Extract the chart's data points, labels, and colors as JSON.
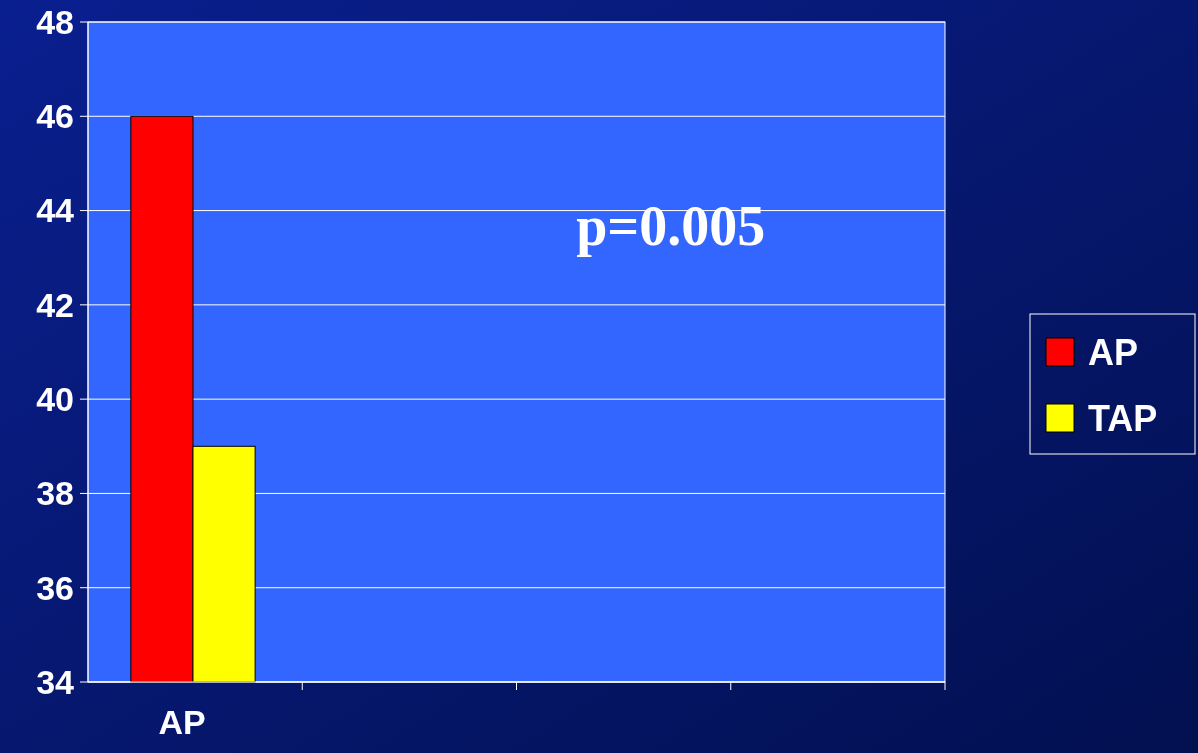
{
  "chart_data": {
    "type": "bar",
    "categories": [
      "AP",
      null,
      null,
      null
    ],
    "series": [
      {
        "name": "AP",
        "color": "#ff0000",
        "values": [
          46,
          null,
          null,
          null
        ]
      },
      {
        "name": "TAP",
        "color": "#ffff00",
        "values": [
          39,
          null,
          null,
          null
        ]
      }
    ],
    "ylim": [
      34,
      48
    ],
    "yticks": [
      34,
      36,
      38,
      40,
      42,
      44,
      46,
      48
    ],
    "grid": "y",
    "legend": "right",
    "annotations": [
      "p=0.005"
    ]
  }
}
